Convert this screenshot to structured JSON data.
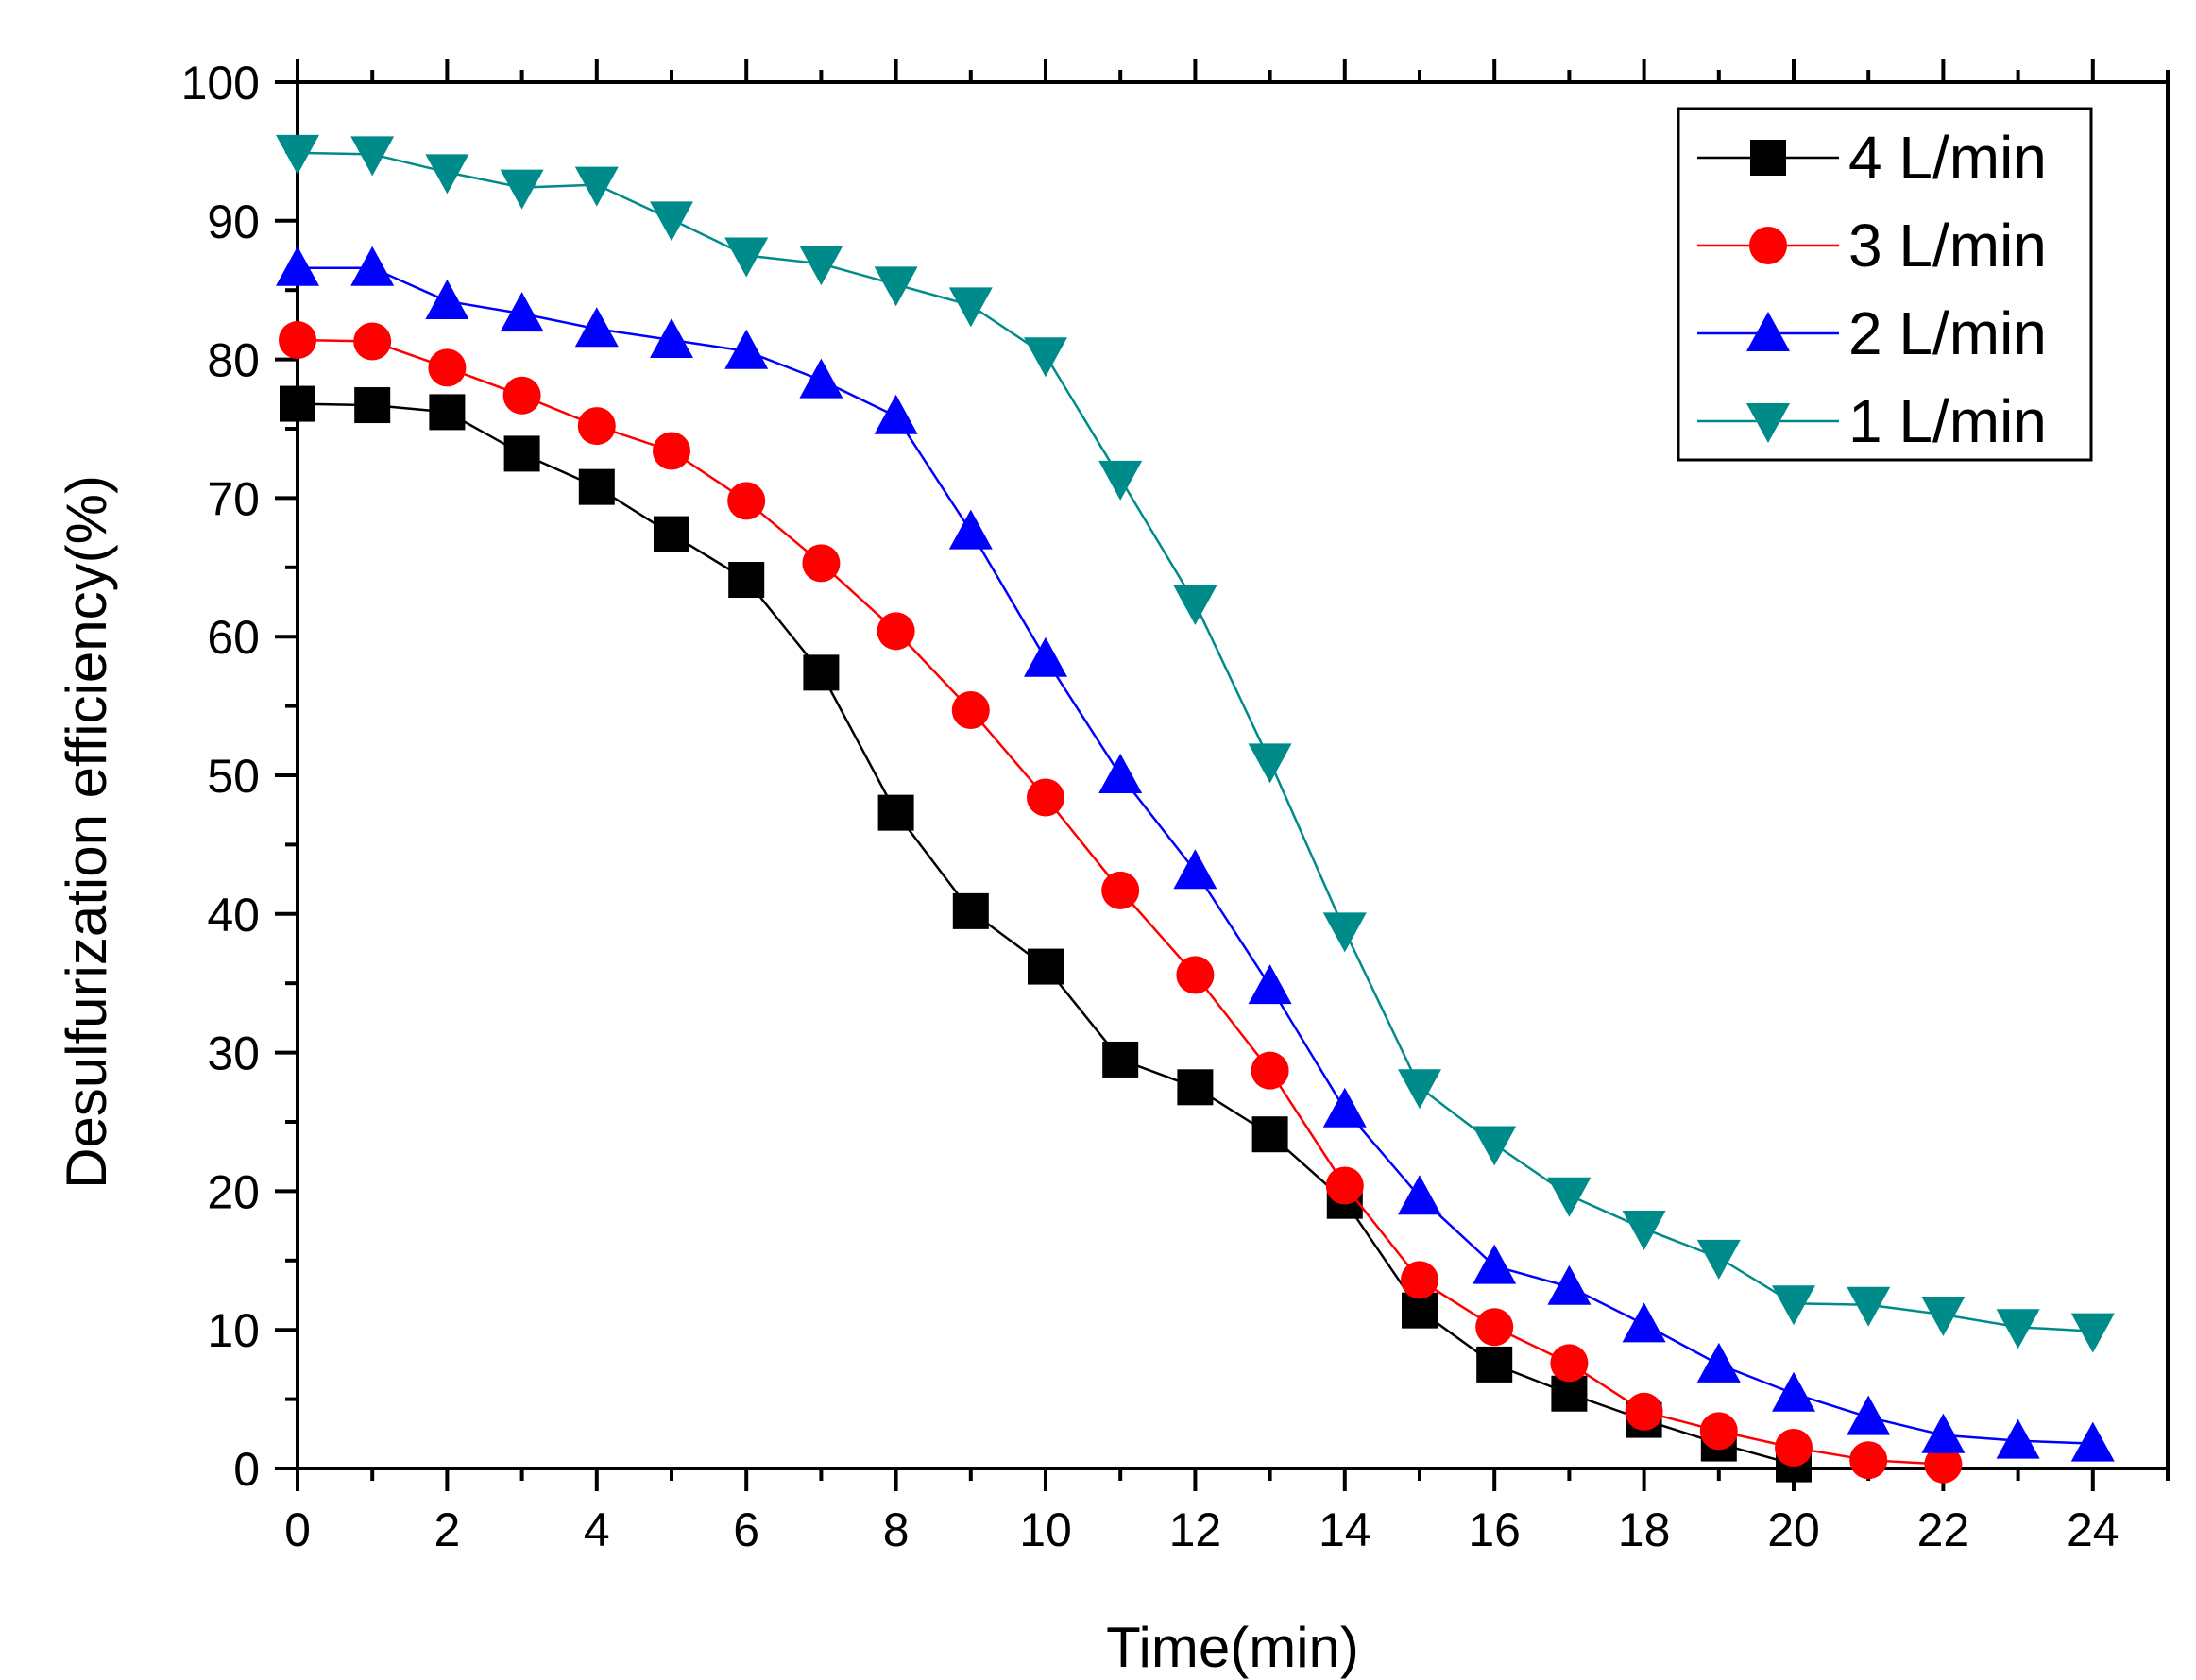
{
  "chart_data": {
    "type": "line",
    "title": "",
    "xlabel": "Time(min)",
    "ylabel": "Desulfurization efficiency(%)",
    "xlim": [
      0,
      25
    ],
    "ylim": [
      0,
      100
    ],
    "x_ticks": [
      0,
      2,
      4,
      6,
      8,
      10,
      12,
      14,
      16,
      18,
      20,
      22,
      24
    ],
    "y_ticks": [
      0,
      10,
      20,
      30,
      40,
      50,
      60,
      70,
      80,
      90,
      100
    ],
    "grid": false,
    "legend_position": "top-right",
    "series": [
      {
        "name": "4 L/min",
        "color": "#000000",
        "marker": "square",
        "x": [
          0,
          1,
          2,
          3,
          4,
          5,
          6,
          7,
          8,
          9,
          10,
          11,
          12,
          13,
          14,
          15,
          16,
          17,
          18,
          19,
          20
        ],
        "y": [
          76.8,
          76.7,
          76.2,
          73.2,
          70.8,
          67.4,
          64.1,
          57.4,
          47.3,
          40.2,
          36.2,
          29.5,
          27.5,
          24.1,
          19.3,
          11.4,
          7.5,
          5.4,
          3.5,
          1.8,
          0.3
        ]
      },
      {
        "name": "3 L/min",
        "color": "#ff0000",
        "marker": "circle",
        "x": [
          0,
          1,
          2,
          3,
          4,
          5,
          6,
          7,
          8,
          9,
          10,
          11,
          12,
          13,
          14,
          15,
          16,
          17,
          18,
          19,
          20,
          21,
          22
        ],
        "y": [
          81.4,
          81.3,
          79.4,
          77.4,
          75.2,
          73.4,
          69.8,
          65.3,
          60.4,
          54.7,
          48.4,
          41.7,
          35.6,
          28.7,
          20.4,
          13.6,
          10.2,
          7.6,
          4.1,
          2.7,
          1.5,
          0.6,
          0.3
        ]
      },
      {
        "name": "2 L/min",
        "color": "#0000ff",
        "marker": "triangle-up",
        "x": [
          0,
          1,
          2,
          3,
          4,
          5,
          6,
          7,
          8,
          9,
          10,
          11,
          12,
          13,
          14,
          15,
          16,
          17,
          18,
          19,
          20,
          21,
          22,
          23,
          24
        ],
        "y": [
          86.6,
          86.6,
          84.2,
          83.3,
          82.2,
          81.4,
          80.6,
          78.5,
          75.9,
          67.6,
          58.4,
          50.0,
          43.1,
          34.8,
          25.9,
          19.6,
          14.6,
          13.1,
          10.4,
          7.5,
          5.4,
          3.7,
          2.4,
          2.0,
          1.8
        ]
      },
      {
        "name": "1 L/min",
        "color": "#008b8b",
        "marker": "triangle-down",
        "x": [
          0,
          1,
          2,
          3,
          4,
          5,
          6,
          7,
          8,
          9,
          10,
          11,
          12,
          13,
          14,
          15,
          16,
          17,
          18,
          19,
          20,
          21,
          22,
          23,
          24
        ],
        "y": [
          94.9,
          94.8,
          93.5,
          92.4,
          92.6,
          90.1,
          87.5,
          86.9,
          85.4,
          83.9,
          80.3,
          71.4,
          62.4,
          51.0,
          38.8,
          27.5,
          23.4,
          19.7,
          17.3,
          15.2,
          11.9,
          11.8,
          11.1,
          10.2,
          9.9
        ]
      }
    ]
  }
}
